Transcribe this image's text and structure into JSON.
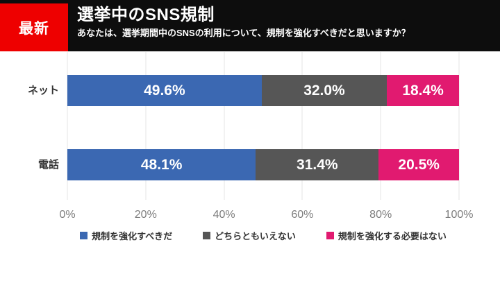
{
  "header": {
    "badge": "最新",
    "badge_color": "#ee0000",
    "bar_color": "#0d0d0d",
    "title": "選挙中のSNS規制",
    "subtitle": "あなたは、選挙期間中のSNSの利用について、規制を強化すべきだと思いますか？"
  },
  "chart_data": {
    "type": "bar",
    "orientation": "horizontal",
    "stacked": true,
    "title": "選挙中のSNS規制",
    "categories": [
      "ネット",
      "電話"
    ],
    "series": [
      {
        "name": "規制を強化すべきだ",
        "color": "#3b68b2",
        "values": [
          49.6,
          48.1
        ]
      },
      {
        "name": "どちらともいえない",
        "color": "#565656",
        "values": [
          32.0,
          31.4
        ]
      },
      {
        "name": "規制を強化する必要はない",
        "color": "#e11a70",
        "values": [
          18.4,
          20.5
        ]
      }
    ],
    "value_suffix": "%",
    "xlim": [
      0,
      100
    ],
    "x_ticks": [
      "0%",
      "20%",
      "40%",
      "60%",
      "80%",
      "100%"
    ],
    "grid": true,
    "legend_position": "bottom"
  }
}
